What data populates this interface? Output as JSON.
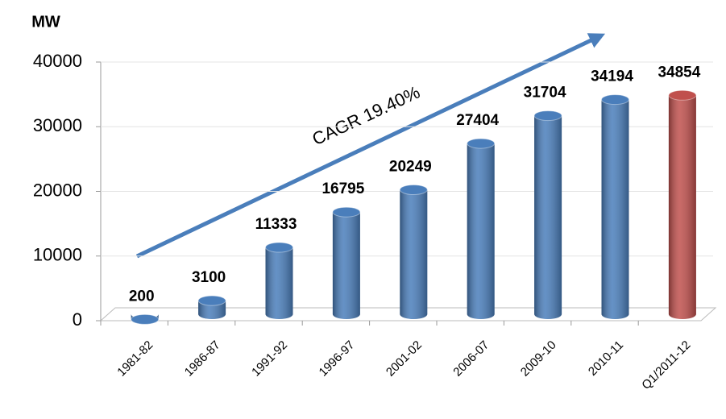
{
  "chart_data": {
    "type": "bar",
    "y_axis_label": "MW",
    "annotation": "CAGR 19.40%",
    "categories": [
      "1981-82",
      "1986-87",
      "1991-92",
      "1996-97",
      "2001-02",
      "2006-07",
      "2009-10",
      "2010-11",
      "Q1/2011-12"
    ],
    "values": [
      200,
      3100,
      11333,
      16795,
      20249,
      27404,
      31704,
      34194,
      34854
    ],
    "colors": [
      "#4a7ebb",
      "#4a7ebb",
      "#4a7ebb",
      "#4a7ebb",
      "#4a7ebb",
      "#4a7ebb",
      "#4a7ebb",
      "#4a7ebb",
      "#c0504d"
    ],
    "ylim": [
      0,
      40000
    ],
    "yticks": [
      0,
      10000,
      20000,
      30000,
      40000
    ],
    "grid": true
  }
}
